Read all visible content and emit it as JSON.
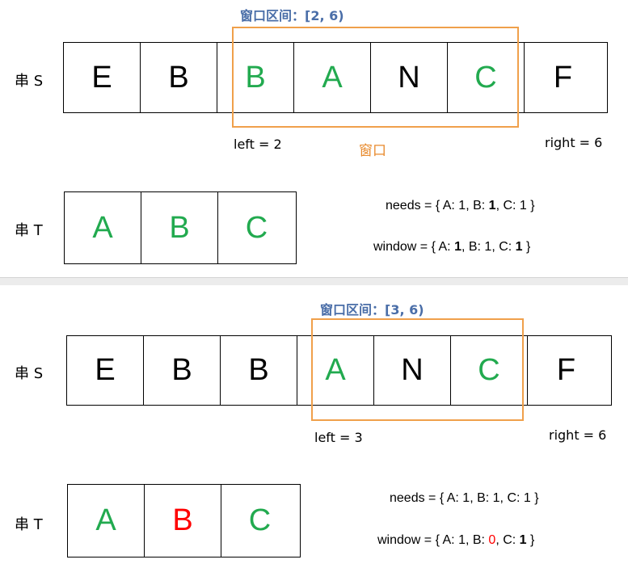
{
  "panels": [
    {
      "window_label": "窗口区间：[2, 6)",
      "s_label": "串 S",
      "s_cells": [
        {
          "ch": "E",
          "color": "#000000"
        },
        {
          "ch": "B",
          "color": "#000000"
        },
        {
          "ch": "B",
          "color": "#22aa4f"
        },
        {
          "ch": "A",
          "color": "#22aa4f"
        },
        {
          "ch": "N",
          "color": "#000000"
        },
        {
          "ch": "C",
          "color": "#22aa4f"
        },
        {
          "ch": "F",
          "color": "#000000"
        }
      ],
      "left_text": "left = 2",
      "right_text": "right = 6",
      "window_caption": "窗口",
      "t_label": "串 T",
      "t_cells": [
        {
          "ch": "A",
          "color": "#22aa4f"
        },
        {
          "ch": "B",
          "color": "#22aa4f"
        },
        {
          "ch": "C",
          "color": "#22aa4f"
        }
      ],
      "needs": {
        "prefix": "needs = { A: 1, B: ",
        "b": "1",
        "mid": ", C: ",
        "c": "1",
        "suffix": " }"
      },
      "window": {
        "prefix": "window = { A: ",
        "a": "1",
        "mid1": ", B: ",
        "b": "1",
        "mid2": ", C: ",
        "c": "1",
        "suffix": " }"
      }
    },
    {
      "window_label": "窗口区间：[3, 6)",
      "s_label": "串 S",
      "s_cells": [
        {
          "ch": "E",
          "color": "#000000"
        },
        {
          "ch": "B",
          "color": "#000000"
        },
        {
          "ch": "B",
          "color": "#000000"
        },
        {
          "ch": "A",
          "color": "#22aa4f"
        },
        {
          "ch": "N",
          "color": "#000000"
        },
        {
          "ch": "C",
          "color": "#22aa4f"
        },
        {
          "ch": "F",
          "color": "#000000"
        }
      ],
      "left_text": "left = 3",
      "right_text": "right = 6",
      "t_label": "串 T",
      "t_cells": [
        {
          "ch": "A",
          "color": "#22aa4f"
        },
        {
          "ch": "B",
          "color": "#ff0000"
        },
        {
          "ch": "C",
          "color": "#22aa4f"
        }
      ],
      "needs_text": "needs = { A: 1, B: 1, C: 1 }",
      "window": {
        "prefix": "window = { A: 1, B: ",
        "b": "0",
        "mid": ", C: ",
        "c": "1",
        "suffix": " }"
      }
    }
  ],
  "colors": {
    "window_border": "#f0a04b",
    "match": "#22aa4f",
    "deficit": "#ff0000",
    "label_blue": "#4a6ea8"
  }
}
